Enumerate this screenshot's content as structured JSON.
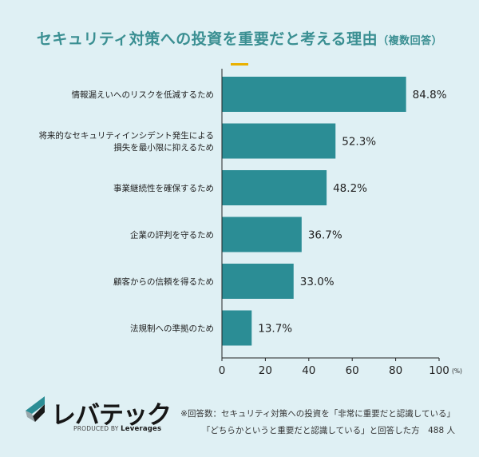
{
  "header": {
    "title": "セキュリティ対策への投資を重要だと考える理由",
    "title_suffix": "（複数回答）"
  },
  "chart_data": {
    "type": "bar",
    "orientation": "horizontal",
    "title": "セキュリティ対策への投資を重要だと考える理由（複数回答）",
    "categories": [
      "情報漏えいへのリスクを低減するため",
      "将来的なセキュリティインシデント発生による損失を最小限に抑えるため",
      "事業継続性を確保するため",
      "企業の評判を守るため",
      "顧客からの信頼を得るため",
      "法規制への準拠のため"
    ],
    "category_lines": [
      [
        "情報漏えいへのリスクを低減するため"
      ],
      [
        "将来的なセキュリティインシデント発生による",
        "損失を最小限に抑えるため"
      ],
      [
        "事業継続性を確保するため"
      ],
      [
        "企業の評判を守るため"
      ],
      [
        "顧客からの信頼を得るため"
      ],
      [
        "法規制への準拠のため"
      ]
    ],
    "values": [
      84.8,
      52.3,
      48.2,
      36.7,
      33.0,
      13.7
    ],
    "value_labels": [
      "84.8%",
      "52.3%",
      "48.2%",
      "36.7%",
      "33.0%",
      "13.7%"
    ],
    "xlim": [
      0,
      100
    ],
    "x_ticks": [
      0,
      20,
      40,
      60,
      80,
      100
    ],
    "x_tick_labels": [
      "0",
      "20",
      "40",
      "60",
      "80",
      "100"
    ],
    "x_unit": "(%)",
    "grid": false,
    "colors": {
      "bar": "#2b8d95",
      "axis": "#222222",
      "title": "#3a8f92",
      "accent": "#e9b100",
      "background": "#dff0f4"
    }
  },
  "footer": {
    "logo_text": "レバテック",
    "logo_sub_prefix": "PRODUCED BY",
    "logo_sub_brand": "Leverages",
    "note_line1": "※回答数：セキュリティ対策への投資を「非常に重要だと認識している」",
    "note_line2": "「どちらかというと重要だと認識している」と回答した方　488 人"
  }
}
